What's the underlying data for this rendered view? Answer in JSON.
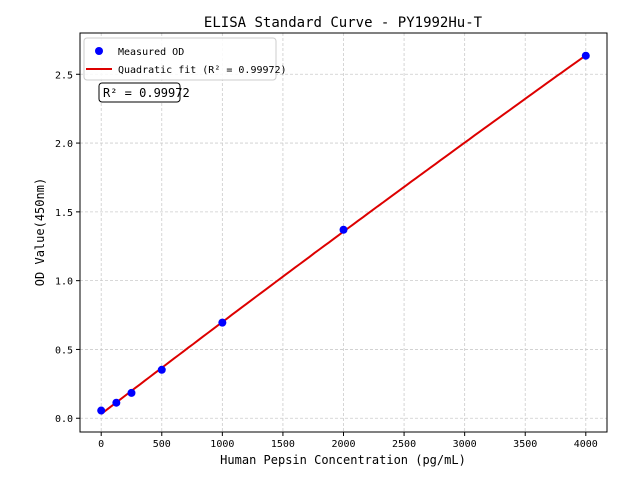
{
  "chart_data": {
    "type": "scatter",
    "title": "ELISA Standard Curve - PY1992Hu-T",
    "xlabel": "Human Pepsin Concentration (pg/mL)",
    "ylabel": "OD Value(450nm)",
    "xlim": [
      -175,
      4175
    ],
    "ylim": [
      -0.1,
      2.8
    ],
    "xticks": [
      0,
      500,
      1000,
      1500,
      2000,
      2500,
      3000,
      3500,
      4000
    ],
    "yticks": [
      0.0,
      0.5,
      1.0,
      1.5,
      2.0,
      2.5
    ],
    "grid": true,
    "legend_position": "top-left",
    "series": [
      {
        "name": "Measured OD",
        "kind": "points",
        "color": "#0000ff",
        "x": [
          0,
          125,
          250,
          500,
          1000,
          2000,
          4000
        ],
        "y": [
          0.056,
          0.113,
          0.184,
          0.352,
          0.695,
          1.37,
          2.635
        ]
      },
      {
        "name": "Quadratic fit (R² = 0.99972)",
        "kind": "line",
        "color": "#dd0000"
      }
    ],
    "annotation": "R² = 0.99972"
  }
}
